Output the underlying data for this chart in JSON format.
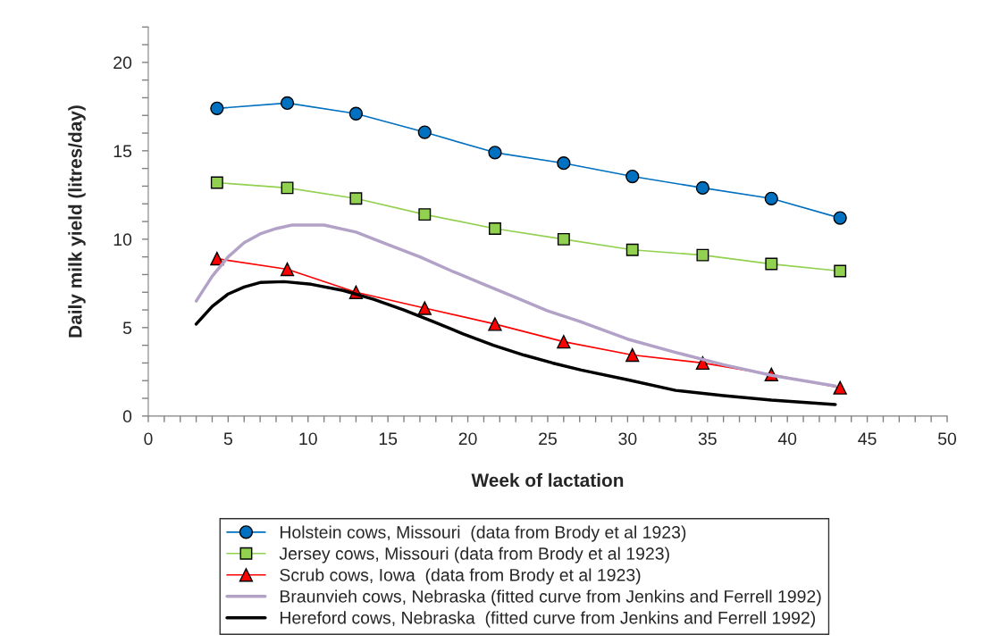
{
  "chart_data": {
    "type": "line",
    "xlabel": "Week of lactation",
    "ylabel": "Daily milk yield (litres/day)",
    "xlim": [
      0,
      50
    ],
    "ylim": [
      0,
      22
    ],
    "xticks": [
      0,
      {
        "value": 1,
        "label": null
      },
      {
        "value": 2,
        "label": null
      },
      {
        "value": 3,
        "label": null
      },
      {
        "value": 4,
        "label": null
      },
      5,
      {
        "value": 6,
        "label": null
      },
      {
        "value": 7,
        "label": null
      },
      {
        "value": 8,
        "label": null
      },
      {
        "value": 9,
        "label": null
      },
      10,
      {
        "value": 11,
        "label": null
      },
      {
        "value": 12,
        "label": null
      },
      {
        "value": 13,
        "label": null
      },
      {
        "value": 14,
        "label": null
      },
      15,
      {
        "value": 16,
        "label": null
      },
      {
        "value": 17,
        "label": null
      },
      {
        "value": 18,
        "label": null
      },
      {
        "value": 19,
        "label": null
      },
      20,
      {
        "value": 21,
        "label": null
      },
      {
        "value": 22,
        "label": null
      },
      {
        "value": 23,
        "label": null
      },
      {
        "value": 24,
        "label": null
      },
      25,
      {
        "value": 26,
        "label": null
      },
      {
        "value": 27,
        "label": null
      },
      {
        "value": 28,
        "label": null
      },
      {
        "value": 29,
        "label": null
      },
      30,
      {
        "value": 31,
        "label": null
      },
      {
        "value": 32,
        "label": null
      },
      {
        "value": 33,
        "label": null
      },
      {
        "value": 34,
        "label": null
      },
      35,
      {
        "value": 36,
        "label": null
      },
      {
        "value": 37,
        "label": null
      },
      {
        "value": 38,
        "label": null
      },
      {
        "value": 39,
        "label": null
      },
      40,
      {
        "value": 41,
        "label": null
      },
      {
        "value": 42,
        "label": null
      },
      {
        "value": 43,
        "label": null
      },
      {
        "value": 44,
        "label": null
      },
      45,
      {
        "value": 46,
        "label": null
      },
      {
        "value": 47,
        "label": null
      },
      {
        "value": 48,
        "label": null
      },
      {
        "value": 49,
        "label": null
      },
      50
    ],
    "yticks": [
      0,
      {
        "value": 1,
        "label": null
      },
      {
        "value": 2,
        "label": null
      },
      {
        "value": 3,
        "label": null
      },
      {
        "value": 4,
        "label": null
      },
      5,
      {
        "value": 6,
        "label": null
      },
      {
        "value": 7,
        "label": null
      },
      {
        "value": 8,
        "label": null
      },
      {
        "value": 9,
        "label": null
      },
      10,
      {
        "value": 11,
        "label": null
      },
      {
        "value": 12,
        "label": null
      },
      {
        "value": 13,
        "label": null
      },
      {
        "value": 14,
        "label": null
      },
      15,
      {
        "value": 16,
        "label": null
      },
      {
        "value": 17,
        "label": null
      },
      {
        "value": 18,
        "label": null
      },
      {
        "value": 19,
        "label": null
      },
      20,
      {
        "value": 21,
        "label": null
      },
      {
        "value": 22,
        "label": null
      }
    ],
    "grid": false,
    "legend": "bottom",
    "series": [
      {
        "name": "Holstein cows, Missouri  (data from Brody et al 1923)",
        "color": "#0070c0",
        "marker": "circle",
        "x": [
          4.3,
          8.7,
          13.0,
          17.3,
          21.7,
          26.0,
          30.3,
          34.7,
          39.0,
          43.3
        ],
        "values": [
          17.4,
          17.7,
          17.1,
          16.05,
          14.9,
          14.3,
          13.55,
          12.9,
          12.3,
          11.2
        ]
      },
      {
        "name": "Jersey cows, Missouri (data from Brody et al 1923)",
        "color": "#92d050",
        "marker": "square",
        "x": [
          4.3,
          8.7,
          13.0,
          17.3,
          21.7,
          26.0,
          30.3,
          34.7,
          39.0,
          43.3
        ],
        "values": [
          13.2,
          12.9,
          12.3,
          11.4,
          10.6,
          10.0,
          9.4,
          9.1,
          8.6,
          8.2
        ]
      },
      {
        "name": "Scrub cows, Iowa  (data from Brody et al 1923)",
        "color": "#ff0000",
        "marker": "triangle",
        "x": [
          4.3,
          8.7,
          13.0,
          17.3,
          21.7,
          26.0,
          30.3,
          34.7,
          39.0,
          43.3
        ],
        "values": [
          8.9,
          8.3,
          7.0,
          6.1,
          5.2,
          4.2,
          3.45,
          3.0,
          2.35,
          1.6
        ]
      },
      {
        "name": "Braunvieh cows, Nebraska (fitted curve from Jenkins and Ferrell 1992)",
        "color": "#b3a2c7",
        "marker": "none",
        "x": [
          3.0,
          4.0,
          5.0,
          6.0,
          7.0,
          8.0,
          9.0,
          11.0,
          13.0,
          15.0,
          17.0,
          19.0,
          21.0,
          23.0,
          25.0,
          27.0,
          30.0,
          33.0,
          36.0,
          39.0,
          43.0
        ],
        "values": [
          6.5,
          7.9,
          9.0,
          9.8,
          10.3,
          10.6,
          10.8,
          10.8,
          10.4,
          9.7,
          9.0,
          8.2,
          7.45,
          6.7,
          5.95,
          5.35,
          4.35,
          3.6,
          2.9,
          2.3,
          1.7
        ]
      },
      {
        "name": "Hereford cows, Nebraska  (fitted curve from Jenkins and Ferrell 1992)",
        "color": "#000000",
        "marker": "none",
        "x": [
          3.0,
          4.0,
          5.0,
          6.0,
          7.0,
          8.5,
          10.2,
          12.2,
          14.1,
          16.0,
          17.8,
          19.7,
          21.6,
          23.5,
          25.3,
          27.1,
          30.0,
          33.0,
          36.0,
          39.0,
          43.0
        ],
        "values": [
          5.2,
          6.2,
          6.9,
          7.3,
          7.55,
          7.6,
          7.45,
          7.1,
          6.6,
          6.0,
          5.35,
          4.65,
          4.0,
          3.45,
          3.0,
          2.6,
          2.05,
          1.45,
          1.15,
          0.9,
          0.65
        ]
      }
    ]
  }
}
